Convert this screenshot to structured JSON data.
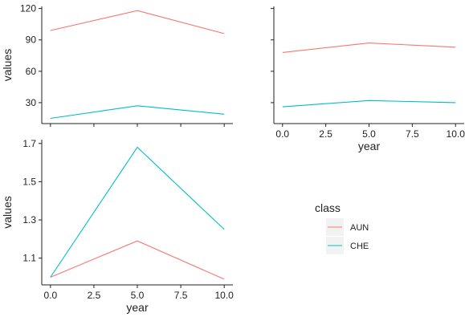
{
  "chart_data": [
    {
      "type": "line",
      "panel": "top-left",
      "xlabel": "",
      "ylabel": "values",
      "x": [
        0,
        5,
        10
      ],
      "xlim": [
        -0.5,
        10.5
      ],
      "ylim": [
        10,
        122
      ],
      "yticks": [
        30,
        60,
        90,
        120
      ],
      "xticks": [
        0,
        2.5,
        5,
        7.5,
        10
      ],
      "show_x_tick_labels": false,
      "show_y_tick_labels": true,
      "series": [
        {
          "name": "AUN",
          "values": [
            99,
            118,
            96
          ]
        },
        {
          "name": "CHE",
          "values": [
            15,
            27,
            19
          ]
        }
      ]
    },
    {
      "type": "line",
      "panel": "top-right",
      "xlabel": "year",
      "ylabel": "",
      "x": [
        0,
        5,
        10
      ],
      "xlim": [
        -0.5,
        10.5
      ],
      "ylim": [
        10,
        122
      ],
      "yticks": [
        30,
        60,
        90,
        120
      ],
      "xticks": [
        0,
        2.5,
        5,
        7.5,
        10
      ],
      "xtick_labels": [
        "0.0",
        "2.5",
        "5.0",
        "7.5",
        "10.0"
      ],
      "show_x_tick_labels": true,
      "show_y_tick_labels": false,
      "series": [
        {
          "name": "AUN",
          "values": [
            78,
            87,
            83
          ]
        },
        {
          "name": "CHE",
          "values": [
            26,
            32,
            30
          ]
        }
      ]
    },
    {
      "type": "line",
      "panel": "bottom-left",
      "xlabel": "year",
      "ylabel": "values",
      "x": [
        0,
        5,
        10
      ],
      "xlim": [
        -0.5,
        10.5
      ],
      "ylim": [
        0.96,
        1.72
      ],
      "yticks": [
        1.1,
        1.3,
        1.5,
        1.7
      ],
      "ytick_labels": [
        "1.1",
        "1.3",
        "1.5",
        "1.7"
      ],
      "xticks": [
        0,
        2.5,
        5,
        7.5,
        10
      ],
      "xtick_labels": [
        "0.0",
        "2.5",
        "5.0",
        "7.5",
        "10.0"
      ],
      "show_x_tick_labels": true,
      "show_y_tick_labels": true,
      "series": [
        {
          "name": "AUN",
          "values": [
            1.0,
            1.19,
            0.99
          ]
        },
        {
          "name": "CHE",
          "values": [
            1.0,
            1.68,
            1.25
          ]
        }
      ]
    }
  ],
  "legend": {
    "title": "class",
    "items": [
      {
        "label": "AUN",
        "color": "#F8766D"
      },
      {
        "label": "CHE",
        "color": "#00BFC4"
      }
    ]
  },
  "colors": {
    "AUN": "#F8766D",
    "CHE": "#00BFC4",
    "axis": "#222222",
    "legend_key_bg": "#F2F2F2"
  }
}
